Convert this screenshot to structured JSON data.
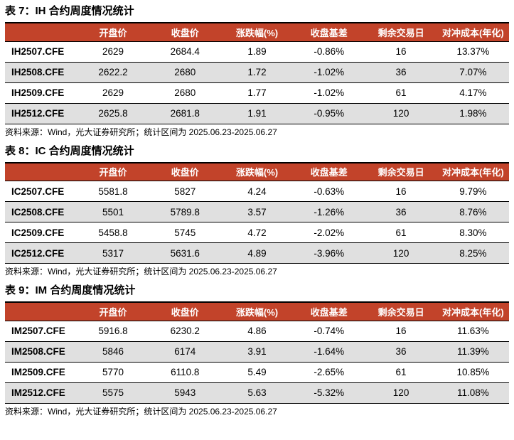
{
  "colors": {
    "header_bg": "#C2432A",
    "row_alt_bg": "#E0E0E0",
    "header_text": "#FFFFFF",
    "border": "#000000"
  },
  "tables": [
    {
      "title": "表 7：IH 合约周度情况统计",
      "headers": [
        "",
        "开盘价",
        "收盘价",
        "涨跌幅(%)",
        "收盘基差",
        "剩余交易日",
        "对冲成本(年化)"
      ],
      "rows": [
        [
          "IH2507.CFE",
          "2629",
          "2684.4",
          "1.89",
          "-0.86%",
          "16",
          "13.37%"
        ],
        [
          "IH2508.CFE",
          "2622.2",
          "2680",
          "1.72",
          "-1.02%",
          "36",
          "7.07%"
        ],
        [
          "IH2509.CFE",
          "2629",
          "2680",
          "1.77",
          "-1.02%",
          "61",
          "4.17%"
        ],
        [
          "IH2512.CFE",
          "2625.8",
          "2681.8",
          "1.91",
          "-0.95%",
          "120",
          "1.98%"
        ]
      ],
      "source": "资料来源：Wind，光大证券研究所；统计区间为 2025.06.23-2025.06.27"
    },
    {
      "title": "表 8：IC 合约周度情况统计",
      "headers": [
        "",
        "开盘价",
        "收盘价",
        "涨跌幅(%)",
        "收盘基差",
        "剩余交易日",
        "对冲成本(年化)"
      ],
      "rows": [
        [
          "IC2507.CFE",
          "5581.8",
          "5827",
          "4.24",
          "-0.63%",
          "16",
          "9.79%"
        ],
        [
          "IC2508.CFE",
          "5501",
          "5789.8",
          "3.57",
          "-1.26%",
          "36",
          "8.76%"
        ],
        [
          "IC2509.CFE",
          "5458.8",
          "5745",
          "4.72",
          "-2.02%",
          "61",
          "8.30%"
        ],
        [
          "IC2512.CFE",
          "5317",
          "5631.6",
          "4.89",
          "-3.96%",
          "120",
          "8.25%"
        ]
      ],
      "source": "资料来源：Wind，光大证券研究所；统计区间为 2025.06.23-2025.06.27"
    },
    {
      "title": "表 9：IM 合约周度情况统计",
      "headers": [
        "",
        "开盘价",
        "收盘价",
        "涨跌幅(%)",
        "收盘基差",
        "剩余交易日",
        "对冲成本(年化)"
      ],
      "rows": [
        [
          "IM2507.CFE",
          "5916.8",
          "6230.2",
          "4.86",
          "-0.74%",
          "16",
          "11.63%"
        ],
        [
          "IM2508.CFE",
          "5846",
          "6174",
          "3.91",
          "-1.64%",
          "36",
          "11.39%"
        ],
        [
          "IM2509.CFE",
          "5770",
          "6110.8",
          "5.49",
          "-2.65%",
          "61",
          "10.85%"
        ],
        [
          "IM2512.CFE",
          "5575",
          "5943",
          "5.63",
          "-5.32%",
          "120",
          "11.08%"
        ]
      ],
      "source": "资料来源：Wind，光大证券研究所；统计区间为 2025.06.23-2025.06.27"
    }
  ]
}
